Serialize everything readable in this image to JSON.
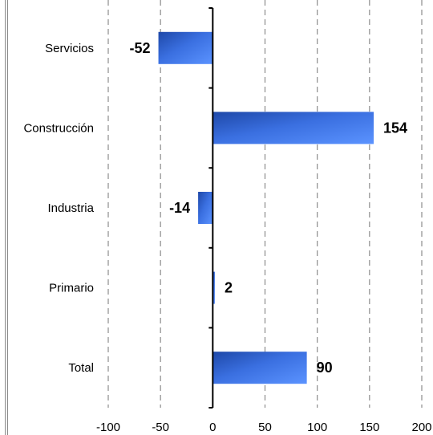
{
  "chart_data": {
    "type": "bar",
    "orientation": "horizontal",
    "categories": [
      "Servicios",
      "Construcción",
      "Industria",
      "Primario",
      "Total"
    ],
    "values": [
      -52,
      154,
      -14,
      2,
      90
    ],
    "data_labels": [
      "-52",
      "154",
      "-14",
      "2",
      "90"
    ],
    "xlim": [
      -100,
      200
    ],
    "x_ticks": [
      -100,
      -50,
      0,
      50,
      100,
      150,
      200
    ],
    "x_tick_labels": [
      "-100",
      "-50",
      "0",
      "50",
      "100",
      "150",
      "200"
    ],
    "grid": "vertical dashed",
    "title": "",
    "xlabel": "",
    "ylabel": "",
    "bar_color": "#3f77e8",
    "bar_color_dark": "#1e48a8"
  }
}
